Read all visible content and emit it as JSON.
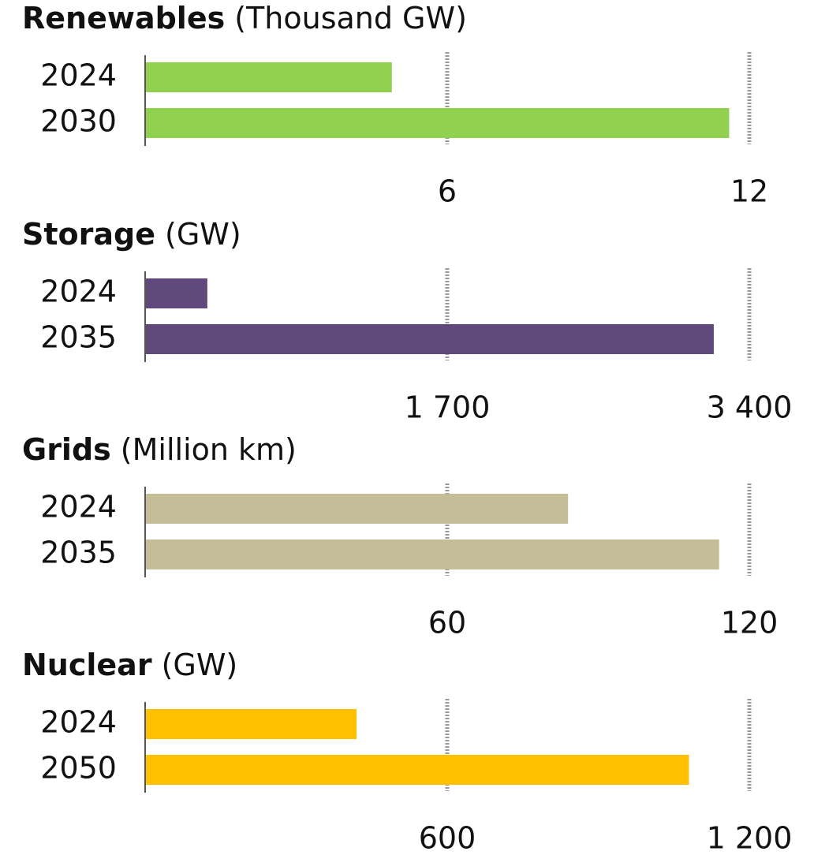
{
  "chart_data": [
    {
      "type": "bar",
      "orientation": "horizontal",
      "title": "Renewables",
      "unit": "(Thousand GW)",
      "categories": [
        "2024",
        "2030"
      ],
      "values": [
        4.9,
        11.6
      ],
      "color": "#92d050",
      "xlim": [
        0,
        12
      ],
      "xticks": [
        6,
        12
      ],
      "grid": true
    },
    {
      "type": "bar",
      "orientation": "horizontal",
      "title": "Storage",
      "unit": "(GW)",
      "categories": [
        "2024",
        "2035"
      ],
      "values": [
        350,
        3200
      ],
      "color": "#604a7b",
      "xlim": [
        0,
        3400
      ],
      "xticks": [
        {
          "value": 1700,
          "label": "1 700"
        },
        {
          "value": 3400,
          "label": "3 400"
        }
      ],
      "grid": true
    },
    {
      "type": "bar",
      "orientation": "horizontal",
      "title": "Grids",
      "unit": "(Million km)",
      "categories": [
        "2024",
        "2035"
      ],
      "values": [
        84,
        114
      ],
      "color": "#c4bd97",
      "xlim": [
        0,
        120
      ],
      "xticks": [
        60,
        120
      ],
      "grid": true
    },
    {
      "type": "bar",
      "orientation": "horizontal",
      "title": "Nuclear",
      "unit": "(GW)",
      "categories": [
        "2024",
        "2050"
      ],
      "values": [
        420,
        1080
      ],
      "color": "#ffc000",
      "xlim": [
        0,
        1200
      ],
      "xticks": [
        {
          "value": 600,
          "label": "600"
        },
        {
          "value": 1200,
          "label": "1 200"
        }
      ],
      "grid": true
    }
  ]
}
